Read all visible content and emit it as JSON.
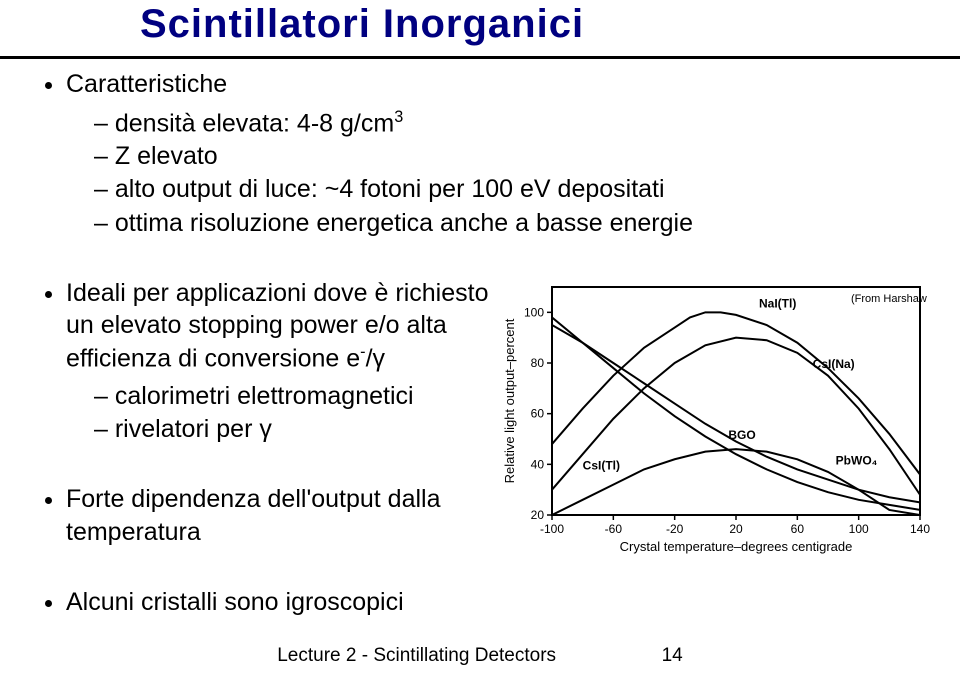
{
  "title": "Scintillatori Inorganici",
  "bullets": {
    "b1": {
      "label": "Caratteristiche",
      "subs": [
        "densità elevata: 4-8 g/cm",
        "Z elevato",
        "alto output di luce: ~4 fotoni per 100 eV depositati",
        "ottima risoluzione energetica anche a basse energie"
      ],
      "sup3": "3"
    },
    "b2": {
      "label": "Ideali per applicazioni  dove è richiesto un elevato stopping power e/o alta efficienza di conversione e",
      "b2_tail": "/γ",
      "b2_sup": "-",
      "subs": [
        "calorimetri elettromagnetici",
        "rivelatori per γ"
      ]
    },
    "b3": {
      "label": "Forte dipendenza dell'output dalla temperatura"
    },
    "b4": {
      "label": "Alcuni cristalli sono igroscopici"
    }
  },
  "graph": {
    "type": "line",
    "background_color": "#ffffff",
    "axis_color": "#000000",
    "font_size": 12,
    "xlabel": "Crystal temperature–degrees centigrade",
    "ylabel": "Relative light output–percent",
    "xlim": [
      -100,
      140
    ],
    "ylim": [
      20,
      110
    ],
    "xticks": [
      -100,
      -60,
      -20,
      20,
      60,
      100,
      140
    ],
    "yticks": [
      20,
      40,
      60,
      80,
      100
    ],
    "annotations": {
      "from_harshaw": "(From Harshaw catalog)",
      "nai_tl": "NaI(Tl)",
      "csi_na": "CsI(Na)",
      "bgo": "BGO",
      "csi_tl": "CsI(Tl)",
      "pbwo4": "PbWO₄"
    },
    "series": [
      {
        "name": "NaI(Tl)",
        "color": "#000000",
        "width": 2,
        "points": [
          [
            -100,
            48
          ],
          [
            -80,
            62
          ],
          [
            -60,
            75
          ],
          [
            -40,
            86
          ],
          [
            -20,
            94
          ],
          [
            -10,
            98
          ],
          [
            0,
            100
          ],
          [
            10,
            100
          ],
          [
            20,
            99
          ],
          [
            40,
            95
          ],
          [
            60,
            88
          ],
          [
            80,
            78
          ],
          [
            100,
            66
          ],
          [
            120,
            52
          ],
          [
            140,
            36
          ]
        ]
      },
      {
        "name": "CsI(Na)",
        "color": "#000000",
        "width": 2,
        "points": [
          [
            -100,
            30
          ],
          [
            -80,
            44
          ],
          [
            -60,
            58
          ],
          [
            -40,
            70
          ],
          [
            -20,
            80
          ],
          [
            0,
            87
          ],
          [
            20,
            90
          ],
          [
            40,
            89
          ],
          [
            60,
            84
          ],
          [
            80,
            75
          ],
          [
            100,
            62
          ],
          [
            120,
            46
          ],
          [
            140,
            28
          ]
        ]
      },
      {
        "name": "CsI(Tl)",
        "color": "#000000",
        "width": 2,
        "points": [
          [
            -100,
            20
          ],
          [
            -80,
            26
          ],
          [
            -60,
            32
          ],
          [
            -40,
            38
          ],
          [
            -20,
            42
          ],
          [
            0,
            45
          ],
          [
            20,
            46
          ],
          [
            40,
            45
          ],
          [
            60,
            42
          ],
          [
            80,
            37
          ],
          [
            100,
            30
          ],
          [
            120,
            22
          ],
          [
            140,
            20
          ]
        ]
      },
      {
        "name": "BGO",
        "color": "#000000",
        "width": 2,
        "points": [
          [
            -100,
            95
          ],
          [
            -80,
            88
          ],
          [
            -60,
            80
          ],
          [
            -40,
            72
          ],
          [
            -20,
            64
          ],
          [
            0,
            56
          ],
          [
            20,
            49
          ],
          [
            40,
            43
          ],
          [
            60,
            38
          ],
          [
            80,
            34
          ],
          [
            100,
            30
          ],
          [
            120,
            27
          ],
          [
            140,
            25
          ]
        ]
      },
      {
        "name": "PbWO4",
        "color": "#000000",
        "width": 2,
        "points": [
          [
            -100,
            98
          ],
          [
            -80,
            88
          ],
          [
            -60,
            78
          ],
          [
            -40,
            68
          ],
          [
            -20,
            59
          ],
          [
            0,
            51
          ],
          [
            20,
            44
          ],
          [
            40,
            38
          ],
          [
            60,
            33
          ],
          [
            80,
            29
          ],
          [
            100,
            26
          ],
          [
            120,
            24
          ],
          [
            140,
            22
          ]
        ]
      }
    ]
  },
  "footer": {
    "text": "Lecture 2 - Scintillating Detectors",
    "page": "14"
  }
}
